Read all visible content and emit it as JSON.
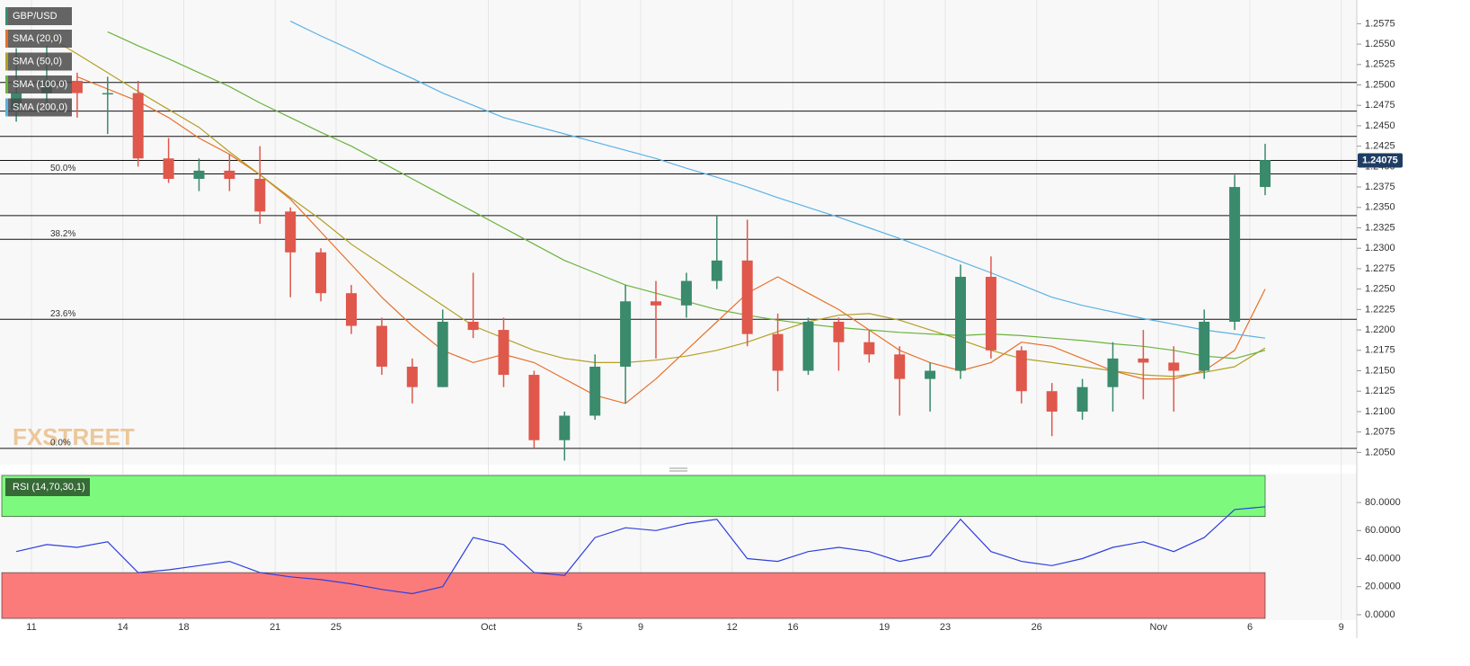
{
  "chart_data": [
    {
      "type": "candlestick",
      "watermark": "FXSTREET",
      "categories": [
        null,
        "11",
        null,
        null,
        "14",
        null,
        "18",
        null,
        null,
        "21",
        null,
        "25",
        null,
        null,
        null,
        null,
        "Oct",
        null,
        null,
        "5",
        null,
        "9",
        null,
        null,
        "12",
        null,
        "16",
        null,
        null,
        "19",
        null,
        "23",
        null,
        null,
        "26",
        null,
        null,
        null,
        "Nov",
        null,
        null,
        "6",
        null,
        null,
        "9"
      ],
      "name": "GBP/USD",
      "up_color": "#3a8a6c",
      "down_color": "#e0574c",
      "open": [
        1.247,
        1.249,
        1.2505,
        1.249,
        1.249,
        1.241,
        1.2385,
        1.2395,
        1.2385,
        1.2345,
        1.2295,
        1.2245,
        1.2205,
        1.2155,
        1.213,
        1.221,
        1.22,
        1.2145,
        1.2065,
        1.2095,
        1.2155,
        1.2235,
        1.223,
        1.226,
        1.2285,
        1.2195,
        1.215,
        1.221,
        1.2185,
        1.217,
        1.214,
        1.215,
        1.2265,
        1.2175,
        1.2125,
        1.21,
        1.213,
        1.2165,
        1.216,
        1.215,
        1.221,
        1.2375,
        null,
        null,
        null
      ],
      "high": [
        1.2545,
        1.2548,
        1.2515,
        1.251,
        1.2505,
        1.2435,
        1.241,
        1.2415,
        1.2425,
        1.235,
        1.23,
        1.2255,
        1.2215,
        1.2165,
        1.2225,
        1.227,
        1.2215,
        1.215,
        1.21,
        1.217,
        1.2255,
        1.226,
        1.227,
        1.234,
        1.2335,
        1.222,
        1.2215,
        1.2215,
        1.22,
        1.218,
        1.216,
        1.228,
        1.229,
        1.218,
        1.2135,
        1.214,
        1.2185,
        1.22,
        1.218,
        1.2225,
        1.239,
        1.2428,
        null,
        null,
        null
      ],
      "low": [
        1.2455,
        1.247,
        1.246,
        1.244,
        1.24,
        1.238,
        1.237,
        1.237,
        1.233,
        1.224,
        1.2235,
        1.2195,
        1.2145,
        1.211,
        1.213,
        1.219,
        1.213,
        1.2055,
        1.204,
        1.209,
        1.211,
        1.2165,
        1.2215,
        1.225,
        1.218,
        1.2125,
        1.2145,
        1.215,
        1.216,
        1.2095,
        1.21,
        1.214,
        1.2165,
        1.211,
        1.207,
        1.209,
        1.21,
        1.2115,
        1.21,
        1.214,
        1.22,
        1.2365,
        null,
        null,
        null
      ],
      "close": [
        1.249,
        1.2505,
        1.249,
        1.249,
        1.241,
        1.2385,
        1.2395,
        1.2385,
        1.2345,
        1.2295,
        1.2245,
        1.2205,
        1.2155,
        1.213,
        1.221,
        1.22,
        1.2145,
        1.2065,
        1.2095,
        1.2155,
        1.2235,
        1.223,
        1.226,
        1.2285,
        1.2195,
        1.215,
        1.221,
        1.2185,
        1.217,
        1.214,
        1.215,
        1.2265,
        1.2175,
        1.2125,
        1.21,
        1.213,
        1.2165,
        1.216,
        1.215,
        1.221,
        1.2375,
        1.2408,
        null,
        null,
        null
      ],
      "series": [
        {
          "name": "SMA (20,0)",
          "color": "#e8702a",
          "values": [
            null,
            null,
            1.251,
            1.2495,
            1.248,
            1.246,
            1.2435,
            1.2415,
            1.239,
            1.236,
            1.232,
            1.228,
            1.224,
            1.2205,
            1.2175,
            1.216,
            1.217,
            1.216,
            1.214,
            1.212,
            1.211,
            1.214,
            1.2175,
            1.221,
            1.2245,
            1.2265,
            1.2245,
            1.2225,
            1.22,
            1.2175,
            1.216,
            1.215,
            1.216,
            1.2185,
            1.218,
            1.2165,
            1.215,
            1.214,
            1.214,
            1.215,
            1.2175,
            1.225,
            null,
            null,
            null
          ]
        },
        {
          "name": "SMA (50,0)",
          "color": "#b3a024",
          "values": [
            null,
            1.256,
            1.2538,
            1.2515,
            1.2492,
            1.247,
            1.2448,
            1.2418,
            1.239,
            1.2362,
            1.2335,
            1.2305,
            1.228,
            1.2255,
            1.223,
            1.2205,
            1.219,
            1.2175,
            1.2165,
            1.216,
            1.216,
            1.2163,
            1.2168,
            1.2175,
            1.2185,
            1.2198,
            1.221,
            1.2218,
            1.222,
            1.2212,
            1.22,
            1.2188,
            1.2175,
            1.2165,
            1.216,
            1.2155,
            1.215,
            1.2145,
            1.2143,
            1.2148,
            1.2155,
            1.2178,
            null,
            null,
            null
          ]
        },
        {
          "name": "SMA (100,0)",
          "color": "#6ab43c",
          "values": [
            null,
            null,
            null,
            1.2565,
            1.2548,
            1.2532,
            1.2515,
            1.2498,
            1.2478,
            1.246,
            1.2442,
            1.2425,
            1.2405,
            1.2385,
            1.2365,
            1.2345,
            1.2325,
            1.2305,
            1.2285,
            1.227,
            1.2255,
            1.2245,
            1.2235,
            1.2225,
            1.2218,
            1.2212,
            1.2207,
            1.2203,
            1.22,
            1.2197,
            1.2195,
            1.2193,
            1.2195,
            1.2193,
            1.219,
            1.2187,
            1.2183,
            1.218,
            1.2175,
            1.2168,
            1.2165,
            1.2175,
            null,
            null,
            null
          ]
        },
        {
          "name": "SMA (200,0)",
          "color": "#5ab2e6",
          "values": [
            null,
            null,
            null,
            null,
            null,
            null,
            null,
            null,
            null,
            1.2578,
            1.256,
            1.2543,
            1.2525,
            1.2508,
            1.249,
            1.2475,
            1.246,
            1.245,
            1.244,
            1.243,
            1.242,
            1.241,
            1.2398,
            1.2387,
            1.2375,
            1.2362,
            1.235,
            1.2338,
            1.2325,
            1.2312,
            1.2298,
            1.2284,
            1.227,
            1.2255,
            1.224,
            1.223,
            1.2222,
            1.2214,
            1.2207,
            1.22,
            1.2195,
            1.219,
            null,
            null,
            null
          ]
        }
      ],
      "horizontal_lines": [
        1.2503,
        1.2468,
        1.2437,
        1.24075,
        1.234
      ],
      "fib_levels": [
        {
          "value": 1.2391,
          "label": "50.0%"
        },
        {
          "value": 1.2311,
          "label": "38.2%"
        },
        {
          "value": 1.2213,
          "label": "23.6%"
        },
        {
          "value": 1.2055,
          "label": "0.0%"
        }
      ],
      "last_price": 1.24075,
      "ylim": [
        1.2035,
        1.2604
      ],
      "yticks": [
        {
          "value": 1.205,
          "label": "1.2050"
        },
        1.2075,
        {
          "value": 1.21,
          "label": "1.2100"
        },
        1.2125,
        {
          "value": 1.215,
          "label": "1.2150"
        },
        1.2175,
        {
          "value": 1.22,
          "label": "1.2200"
        },
        1.2225,
        {
          "value": 1.225,
          "label": "1.2250"
        },
        1.2275,
        {
          "value": 1.23,
          "label": "1.2300"
        },
        1.2325,
        {
          "value": 1.235,
          "label": "1.2350"
        },
        1.2375,
        {
          "value": 1.24,
          "label": "1.2400"
        },
        1.2425,
        {
          "value": 1.245,
          "label": "1.2450"
        },
        1.2475,
        {
          "value": 1.25,
          "label": "1.2500"
        },
        1.2525,
        {
          "value": 1.255,
          "label": "1.2550"
        },
        1.2575
      ]
    },
    {
      "type": "line",
      "series": [
        {
          "name": "RSI (14,70,30,1)",
          "color": "#2f3fe0",
          "values": [
            45,
            50,
            48,
            52,
            30,
            32,
            35,
            38,
            30,
            27,
            25,
            22,
            18,
            15,
            20,
            55,
            50,
            30,
            28,
            55,
            62,
            60,
            65,
            68,
            40,
            38,
            45,
            48,
            45,
            38,
            42,
            68,
            45,
            38,
            35,
            40,
            48,
            52,
            45,
            55,
            75,
            77,
            null,
            null,
            null
          ]
        }
      ],
      "overbought": 70,
      "oversold": 30,
      "ylim": [
        -3.9,
        100.6
      ],
      "yticks": [
        {
          "value": 0,
          "label": "0.0000"
        },
        {
          "value": 20,
          "label": "20.0000"
        },
        {
          "value": 40,
          "label": "40.0000"
        },
        {
          "value": 60,
          "label": "60.0000"
        },
        {
          "value": 80,
          "label": "80.0000"
        }
      ]
    }
  ]
}
